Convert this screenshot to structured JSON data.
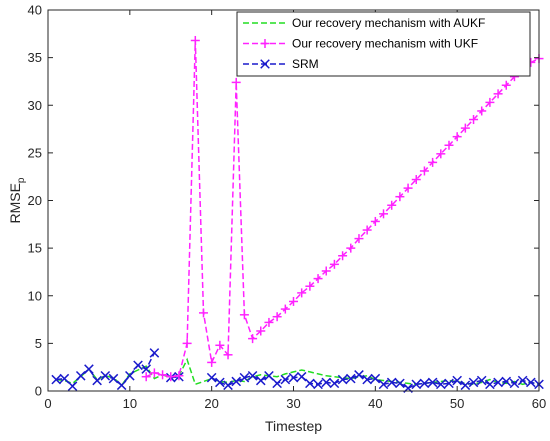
{
  "chart_data": {
    "type": "line",
    "xlabel": "Timestep",
    "ylabel": "RMSE",
    "ylabel_subscript": "p",
    "xlim": [
      0,
      60
    ],
    "ylim": [
      0,
      40
    ],
    "xticks": [
      0,
      10,
      20,
      30,
      40,
      50,
      60
    ],
    "yticks": [
      0,
      5,
      10,
      15,
      20,
      25,
      30,
      35,
      40
    ],
    "grid": false,
    "legend_position": "top-right",
    "series": [
      {
        "name": "Our recovery mechanism with AUKF",
        "color": "#22dd22",
        "marker": "none",
        "x": [
          1,
          2,
          3,
          4,
          5,
          6,
          7,
          8,
          9,
          10,
          11,
          12,
          13,
          14,
          15,
          16,
          17,
          18,
          19,
          20,
          21,
          22,
          23,
          24,
          25,
          26,
          27,
          28,
          29,
          30,
          31,
          32,
          33,
          34,
          35,
          36,
          37,
          38,
          39,
          40,
          41,
          42,
          43,
          44,
          45,
          46,
          47,
          48,
          49,
          50,
          51,
          52,
          53,
          54,
          55,
          56,
          57,
          58,
          59,
          60
        ],
        "y": [
          1.2,
          1.1,
          0.8,
          1.5,
          2.3,
          1.2,
          1.6,
          1.4,
          0.6,
          1.8,
          2.2,
          2.6,
          1.3,
          1.7,
          1.4,
          1.6,
          3.3,
          0.7,
          1.0,
          1.3,
          1.0,
          0.9,
          1.1,
          1.0,
          1.5,
          1.7,
          1.6,
          1.5,
          1.8,
          2.0,
          2.2,
          2.0,
          1.8,
          1.6,
          1.5,
          1.4,
          1.3,
          1.5,
          1.6,
          1.2,
          1.1,
          1.0,
          0.9,
          0.8,
          0.7,
          0.8,
          0.9,
          1.0,
          1.1,
          1.0,
          0.8,
          0.7,
          0.9,
          1.2,
          0.9,
          0.8,
          1.0,
          0.7,
          0.9,
          0.7
        ]
      },
      {
        "name": "Our recovery mechanism with UKF",
        "color": "#ff22ff",
        "marker": "+",
        "x": [
          12,
          13,
          14,
          15,
          16,
          17,
          18,
          19,
          20,
          21,
          22,
          23,
          24,
          25,
          26,
          27,
          28,
          29,
          30,
          31,
          32,
          33,
          34,
          35,
          36,
          37,
          38,
          39,
          40,
          41,
          42,
          43,
          44,
          45,
          46,
          47,
          48,
          49,
          50,
          51,
          52,
          53,
          54,
          55,
          56,
          57,
          58,
          59,
          60
        ],
        "y": [
          1.5,
          1.9,
          1.7,
          1.5,
          1.6,
          5.0,
          36.8,
          8.2,
          3.0,
          4.8,
          3.8,
          32.4,
          8.0,
          5.5,
          6.3,
          7.2,
          7.8,
          8.6,
          9.4,
          10.3,
          11.0,
          11.8,
          12.6,
          13.3,
          14.2,
          15.0,
          16.0,
          16.9,
          17.8,
          18.6,
          19.5,
          20.4,
          21.3,
          22.2,
          23.1,
          24.0,
          24.9,
          25.8,
          26.7,
          27.6,
          28.5,
          29.4,
          30.3,
          31.2,
          32.1,
          33.0,
          33.8,
          34.5,
          34.9
        ]
      },
      {
        "name": "SRM",
        "color": "#1a1acc",
        "marker": "x",
        "x": [
          1,
          2,
          3,
          4,
          5,
          6,
          7,
          8,
          9,
          10,
          11,
          12,
          13,
          14,
          15,
          16,
          17,
          18,
          19,
          20,
          21,
          22,
          23,
          24,
          25,
          26,
          27,
          28,
          29,
          30,
          31,
          32,
          33,
          34,
          35,
          36,
          37,
          38,
          39,
          40,
          41,
          42,
          43,
          44,
          45,
          46,
          47,
          48,
          49,
          50,
          51,
          52,
          53,
          54,
          55,
          56,
          57,
          58,
          59,
          60
        ],
        "y": [
          1.2,
          1.3,
          0.5,
          1.6,
          2.3,
          1.1,
          1.6,
          1.3,
          0.6,
          1.6,
          2.7,
          2.3,
          4.0,
          null,
          1.4,
          1.5,
          null,
          null,
          null,
          1.4,
          0.9,
          0.6,
          1.0,
          1.4,
          1.6,
          1.1,
          1.6,
          0.8,
          1.2,
          1.4,
          1.5,
          0.8,
          0.7,
          0.9,
          0.8,
          1.2,
          1.3,
          1.7,
          1.2,
          1.3,
          0.7,
          0.9,
          0.8,
          0.3,
          0.7,
          0.8,
          0.9,
          0.7,
          0.8,
          1.1,
          0.6,
          0.9,
          1.1,
          0.7,
          0.9,
          1.0,
          0.8,
          1.1,
          0.9,
          0.7
        ]
      }
    ]
  }
}
